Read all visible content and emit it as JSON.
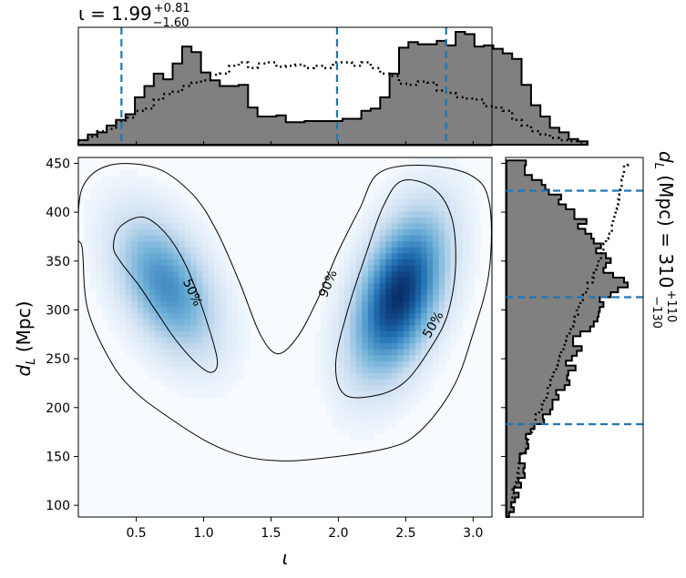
{
  "chart_data": [
    {
      "id": "marginal-iota",
      "type": "histogram",
      "title": "ι = 1.99",
      "title_sup": "+0.81",
      "title_sub": "−1.60",
      "x_range": [
        0.07,
        3.14
      ],
      "bins_start": 0.07,
      "bin_width": 0.07,
      "posterior_heights": [
        0.04,
        0.09,
        0.11,
        0.17,
        0.22,
        0.27,
        0.42,
        0.52,
        0.63,
        0.58,
        0.72,
        0.87,
        0.82,
        0.64,
        0.57,
        0.52,
        0.52,
        0.53,
        0.33,
        0.25,
        0.25,
        0.26,
        0.2,
        0.2,
        0.21,
        0.21,
        0.21,
        0.21,
        0.23,
        0.23,
        0.3,
        0.32,
        0.42,
        0.63,
        0.86,
        0.91,
        0.89,
        0.89,
        0.92,
        0.88,
        1.0,
        0.98,
        0.87,
        0.88,
        0.85,
        0.81,
        0.76,
        0.53,
        0.35,
        0.25,
        0.15,
        0.11,
        0.05,
        0.03
      ],
      "prior_heights": [
        0.04,
        0.07,
        0.12,
        0.14,
        0.2,
        0.24,
        0.3,
        0.32,
        0.4,
        0.45,
        0.47,
        0.52,
        0.55,
        0.57,
        0.62,
        0.63,
        0.7,
        0.73,
        0.68,
        0.72,
        0.73,
        0.69,
        0.7,
        0.71,
        0.68,
        0.7,
        0.68,
        0.73,
        0.73,
        0.7,
        0.73,
        0.68,
        0.63,
        0.61,
        0.54,
        0.53,
        0.56,
        0.55,
        0.48,
        0.46,
        0.42,
        0.41,
        0.4,
        0.34,
        0.33,
        0.3,
        0.22,
        0.17,
        0.12,
        0.09,
        0.06,
        0.04,
        0.03,
        0.02
      ],
      "quantile_lines": [
        0.39,
        1.99,
        2.8
      ]
    },
    {
      "id": "joint-density",
      "type": "heatmap",
      "xlabel": "ι",
      "ylabel": "d",
      "ylabel_sub": "L",
      "ylabel_unit": " (Mpc)",
      "x_range": [
        0.07,
        3.14
      ],
      "y_range": [
        88,
        456
      ],
      "x_ticks": [
        0.5,
        1.0,
        1.5,
        2.0,
        2.5,
        3.0
      ],
      "x_tick_labels": [
        "0.5",
        "1.0",
        "1.5",
        "2.0",
        "2.5",
        "3.0"
      ],
      "y_ticks": [
        100,
        150,
        200,
        250,
        300,
        350,
        400,
        450
      ],
      "y_tick_labels": [
        "100",
        "150",
        "200",
        "250",
        "300",
        "350",
        "400",
        "450"
      ],
      "colormap": [
        "#f7fbff",
        "#c6dbef",
        "#6baed6",
        "#2171b5",
        "#08306b"
      ],
      "density_peaks": [
        {
          "x": 0.72,
          "y": 325,
          "sx": 0.24,
          "sy": 45,
          "rho": -0.45,
          "w": 0.58
        },
        {
          "x": 2.45,
          "y": 315,
          "sx": 0.22,
          "sy": 52,
          "rho": 0.45,
          "w": 1.0
        }
      ],
      "contours": [
        {
          "label": "50%",
          "label_at": [
            0.92,
            318
          ],
          "points": [
            [
              0.33,
              365
            ],
            [
              0.38,
              385
            ],
            [
              0.55,
              395
            ],
            [
              0.72,
              378
            ],
            [
              0.87,
              345
            ],
            [
              1.0,
              298
            ],
            [
              1.1,
              250
            ],
            [
              1.06,
              236
            ],
            [
              0.95,
              245
            ],
            [
              0.8,
              268
            ],
            [
              0.66,
              296
            ],
            [
              0.52,
              325
            ],
            [
              0.38,
              350
            ]
          ]
        },
        {
          "label": "50%",
          "label_at": [
            2.7,
            285
          ],
          "points": [
            [
              2.47,
              432
            ],
            [
              2.7,
              425
            ],
            [
              2.84,
              395
            ],
            [
              2.87,
              345
            ],
            [
              2.81,
              295
            ],
            [
              2.68,
              260
            ],
            [
              2.5,
              227
            ],
            [
              2.3,
              213
            ],
            [
              2.05,
              213
            ],
            [
              1.98,
              245
            ],
            [
              2.07,
              300
            ],
            [
              2.2,
              355
            ],
            [
              2.33,
              405
            ]
          ]
        },
        {
          "label": "90%",
          "label_at": [
            1.92,
            327
          ],
          "points": [
            [
              0.1,
              362
            ],
            [
              0.07,
              375
            ],
            [
              0.1,
              425
            ],
            [
              0.3,
              448
            ],
            [
              0.65,
              445
            ],
            [
              0.92,
              418
            ],
            [
              1.1,
              380
            ],
            [
              1.27,
              327
            ],
            [
              1.42,
              275
            ],
            [
              1.55,
              255
            ],
            [
              1.7,
              273
            ],
            [
              1.85,
              312
            ],
            [
              2.0,
              360
            ],
            [
              2.16,
              404
            ],
            [
              2.3,
              440
            ],
            [
              2.62,
              448
            ],
            [
              2.98,
              438
            ],
            [
              3.12,
              410
            ],
            [
              3.12,
              340
            ],
            [
              3.0,
              276
            ],
            [
              2.85,
              220
            ],
            [
              2.6,
              175
            ],
            [
              2.35,
              158
            ],
            [
              1.8,
              147
            ],
            [
              1.5,
              146
            ],
            [
              1.25,
              152
            ],
            [
              1.0,
              167
            ],
            [
              0.72,
              192
            ],
            [
              0.5,
              215
            ],
            [
              0.32,
              245
            ],
            [
              0.14,
              300
            ]
          ]
        }
      ]
    },
    {
      "id": "marginal-dl",
      "type": "histogram",
      "orientation": "horizontal",
      "title": "d",
      "title_sub_letter": "L",
      "title_rest": " (Mpc) = 310",
      "title_sup": "+110",
      "title_sub": "−130",
      "bins_start": 88,
      "bin_width": 5,
      "posterior_heights": [
        0.02,
        0.06,
        0.04,
        0.07,
        0.1,
        0.06,
        0.12,
        0.1,
        0.15,
        0.14,
        0.15,
        0.11,
        0.11,
        0.16,
        0.18,
        0.17,
        0.16,
        0.2,
        0.23,
        0.31,
        0.3,
        0.36,
        0.38,
        0.38,
        0.43,
        0.41,
        0.48,
        0.52,
        0.5,
        0.51,
        0.57,
        0.49,
        0.54,
        0.58,
        0.62,
        0.55,
        0.55,
        0.61,
        0.69,
        0.72,
        0.75,
        0.76,
        0.77,
        0.8,
        0.77,
        0.86,
        0.92,
        1.0,
        0.97,
        0.88,
        0.8,
        0.82,
        0.86,
        0.82,
        0.74,
        0.78,
        0.72,
        0.7,
        0.65,
        0.59,
        0.66,
        0.56,
        0.56,
        0.49,
        0.43,
        0.45,
        0.35,
        0.32,
        0.29,
        0.21,
        0.15,
        0.15,
        0.16,
        0.13
      ],
      "prior_heights": [
        0.02,
        0.03,
        0.04,
        0.05,
        0.06,
        0.05,
        0.07,
        0.08,
        0.09,
        0.1,
        0.1,
        0.11,
        0.12,
        0.15,
        0.17,
        0.18,
        0.18,
        0.21,
        0.22,
        0.24,
        0.24,
        0.27,
        0.29,
        0.31,
        0.33,
        0.34,
        0.34,
        0.36,
        0.38,
        0.39,
        0.41,
        0.42,
        0.44,
        0.45,
        0.47,
        0.48,
        0.49,
        0.52,
        0.53,
        0.55,
        0.56,
        0.59,
        0.58,
        0.61,
        0.63,
        0.63,
        0.67,
        0.67,
        0.71,
        0.72,
        0.74,
        0.75,
        0.76,
        0.78,
        0.8,
        0.8,
        0.82,
        0.84,
        0.87,
        0.87,
        0.88,
        0.89,
        0.9,
        0.91,
        0.92,
        0.93,
        0.94,
        0.95,
        0.95,
        0.96,
        0.97,
        0.97,
        1.0,
        1.0
      ],
      "quantile_lines": [
        183,
        313,
        422
      ]
    }
  ]
}
